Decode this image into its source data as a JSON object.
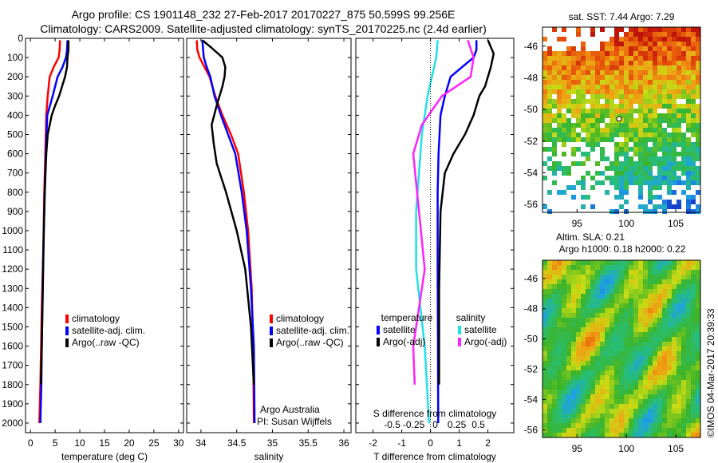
{
  "header": {
    "title_line1": "Argo profile: CS 1901148_232 27-Feb-2017 20170227_875 50.599S 99.256E",
    "title_line2": "Climatology: CARS2009. Satellite-adjusted climatology: synTS_20170225.nc (2.4d earlier)"
  },
  "colors": {
    "climatology": "#ff0000",
    "satellite": "#0000ff",
    "argo": "#000000",
    "satellite_salinity_diff": "#22e0e8",
    "argo_salinity_diff": "#ff22ff"
  },
  "chart_data": [
    {
      "type": "line",
      "ylabel": "",
      "xlabel": "temperature (deg C)",
      "ylim": [
        0,
        2050
      ],
      "xlim": [
        -1,
        31
      ],
      "xticks": [
        0,
        5,
        10,
        15,
        20,
        25,
        30
      ],
      "yticks": [
        0,
        100,
        200,
        300,
        400,
        500,
        600,
        700,
        800,
        900,
        1000,
        1100,
        1200,
        1300,
        1400,
        1500,
        1600,
        1700,
        1800,
        1900,
        2000
      ],
      "yticklabels": [
        "0",
        "100",
        "200",
        "300",
        "400",
        "500",
        "600",
        "700",
        "800",
        "900",
        "1000",
        "1100",
        "1200",
        "1300",
        "1400",
        "1500",
        "1600",
        "1700",
        "1800",
        "1900",
        "2000"
      ],
      "legend": [
        "climatology",
        "satellite-adj. clim.",
        "Argo(..raw -QC)"
      ],
      "series": [
        {
          "name": "climatology",
          "x": [
            6.0,
            5.9,
            5.7,
            4.7,
            3.9,
            3.5,
            3.2,
            3.0,
            2.8,
            2.6,
            2.3,
            2.0,
            1.8
          ],
          "y": [
            10,
            60,
            100,
            150,
            200,
            300,
            400,
            600,
            800,
            1100,
            1400,
            1800,
            2000
          ]
        },
        {
          "name": "satellite-adj. clim.",
          "x": [
            7.5,
            7.4,
            7.2,
            6.5,
            5.5,
            4.5,
            3.4,
            3.1,
            2.9,
            2.6,
            2.4,
            2.2,
            2.0
          ],
          "y": [
            10,
            60,
            100,
            150,
            200,
            300,
            400,
            600,
            800,
            1100,
            1400,
            1800,
            2000
          ]
        },
        {
          "name": "Argo(..raw -QC)",
          "x": [
            7.7,
            7.7,
            7.5,
            7.4,
            7.0,
            6.4,
            5.8,
            5.0,
            4.3,
            3.5,
            3.2,
            2.9,
            2.7,
            2.5,
            2.3,
            2.1
          ],
          "y": [
            10,
            60,
            100,
            150,
            200,
            250,
            300,
            350,
            400,
            500,
            600,
            800,
            1000,
            1300,
            1600,
            1800
          ]
        }
      ]
    },
    {
      "type": "line",
      "xlabel": "salinity",
      "ylim": [
        0,
        2050
      ],
      "xlim": [
        33.8,
        36.1
      ],
      "xticks": [
        34,
        34.5,
        35,
        35.5,
        36
      ],
      "legend": [
        "climatology",
        "satellite-adj. clim.",
        "Argo(..raw -QC)"
      ],
      "annotation": [
        "Argo Australia",
        "PI: Susan Wijffels"
      ],
      "series": [
        {
          "name": "climatology",
          "x": [
            33.94,
            33.95,
            33.98,
            34.05,
            34.12,
            34.2,
            34.3,
            34.42,
            34.52,
            34.6,
            34.66,
            34.71,
            34.73,
            34.74
          ],
          "y": [
            10,
            60,
            100,
            150,
            200,
            300,
            400,
            500,
            600,
            800,
            1000,
            1300,
            1600,
            2000
          ]
        },
        {
          "name": "satellite-adj. clim.",
          "x": [
            34.02,
            34.03,
            34.04,
            34.08,
            34.13,
            34.19,
            34.28,
            34.38,
            34.48,
            34.57,
            34.64,
            34.7,
            34.74,
            34.75
          ],
          "y": [
            10,
            60,
            100,
            150,
            200,
            300,
            400,
            500,
            600,
            800,
            1000,
            1300,
            1600,
            2000
          ]
        },
        {
          "name": "Argo(..raw -QC)",
          "x": [
            34.02,
            34.15,
            34.3,
            34.34,
            34.33,
            34.3,
            34.22,
            34.15,
            34.18,
            34.22,
            34.35,
            34.5,
            34.62,
            34.7,
            34.74
          ],
          "y": [
            10,
            50,
            100,
            150,
            200,
            250,
            350,
            450,
            550,
            650,
            800,
            1000,
            1200,
            1500,
            1800
          ]
        }
      ]
    },
    {
      "type": "line",
      "legend_titles": [
        "temperature",
        "salinity"
      ],
      "legend": [
        "satellite",
        "Argo(-adj)",
        "satellite",
        "Argo(-adj)"
      ],
      "xlabel": "T difference from climatology",
      "xlabel_top": "S difference from climatology",
      "ylim": [
        0,
        2050
      ],
      "xlim": [
        -2.6,
        2.9
      ],
      "xticks": [
        -2,
        -1,
        0,
        1,
        2
      ],
      "xticks_s": [
        "-0.5",
        "-0.25",
        "0",
        "0.25",
        "0.5"
      ],
      "series": [
        {
          "name": "satellite",
          "group": "temperature",
          "x": [
            1.6,
            1.6,
            1.5,
            1.1,
            0.7,
            0.5,
            0.35,
            0.28,
            0.25,
            0.25,
            0.26,
            0.27
          ],
          "y": [
            10,
            60,
            100,
            150,
            200,
            300,
            400,
            600,
            800,
            1200,
            1600,
            2000
          ]
        },
        {
          "name": "Argo(-adj)",
          "group": "temperature",
          "x": [
            2.0,
            2.2,
            2.1,
            1.9,
            1.7,
            1.5,
            1.2,
            0.8,
            0.5,
            0.35,
            0.3,
            0.3
          ],
          "y": [
            10,
            80,
            150,
            250,
            300,
            400,
            500,
            600,
            700,
            900,
            1300,
            1800
          ]
        },
        {
          "name": "satellite",
          "group": "salinity",
          "x": [
            0.25,
            0.2,
            0.05,
            -0.1,
            -0.3,
            -0.4,
            -0.5,
            -0.5,
            -0.2,
            -0.05
          ],
          "y": [
            10,
            100,
            200,
            300,
            500,
            700,
            900,
            1200,
            1600,
            2000
          ]
        },
        {
          "name": "Argo(-adj)",
          "group": "salinity",
          "x": [
            1.3,
            1.5,
            1.4,
            0.9,
            0.4,
            -0.3,
            -0.6,
            -0.4,
            -0.2,
            -0.4,
            -0.6,
            -0.55
          ],
          "y": [
            10,
            100,
            200,
            250,
            300,
            450,
            600,
            900,
            1200,
            1400,
            1600,
            1800
          ]
        }
      ]
    },
    {
      "type": "heatmap",
      "title": "sat. SST: 7.44 Argo: 7.29",
      "xticks": [
        95,
        100,
        105
      ],
      "yticks": [
        -46,
        -48,
        -50,
        -52,
        -54,
        -56
      ],
      "xlim": [
        91.5,
        107.5
      ],
      "ylim": [
        -56.5,
        -44.8
      ],
      "marker": {
        "lon": 99.256,
        "lat": -50.599
      }
    },
    {
      "type": "heatmap",
      "title": "Altim. SLA: 0.21",
      "subtitle": "Argo h1000: 0.18 h2000: 0.22",
      "xticks": [
        95,
        100,
        105
      ],
      "yticks": [
        -46,
        -48,
        -50,
        -52,
        -54,
        -56
      ],
      "xlim": [
        91.5,
        107.5
      ],
      "ylim": [
        -56.5,
        -44.8
      ]
    }
  ],
  "footer": {
    "stamp": "©IMOS 04-Mar-2017 20:39:33"
  }
}
